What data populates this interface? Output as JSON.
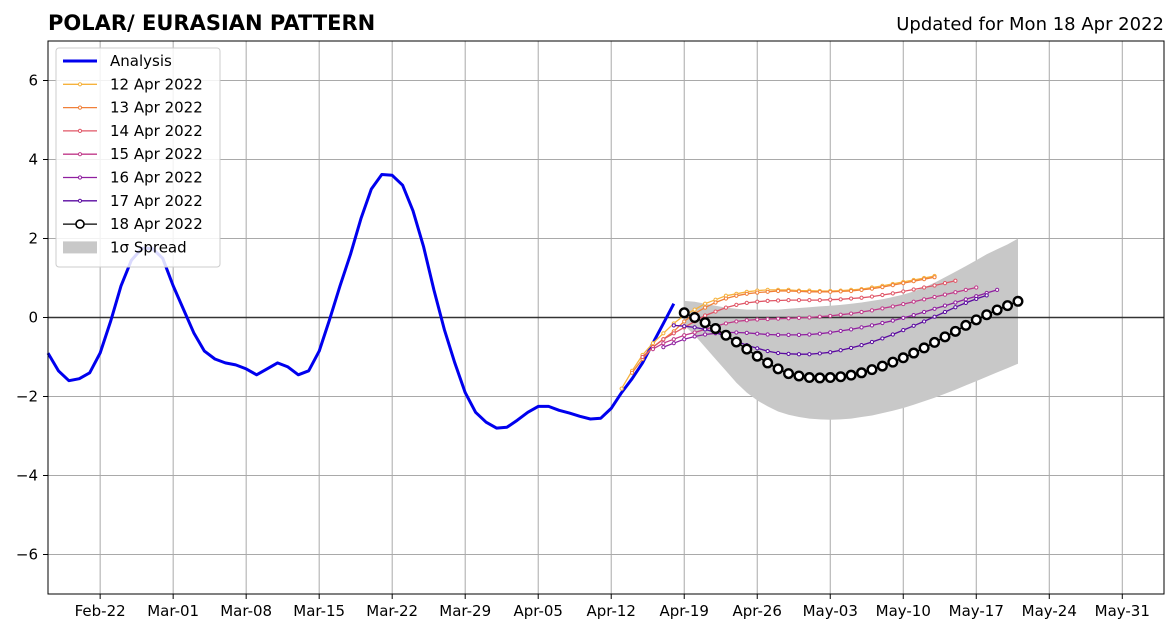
{
  "chart_data": {
    "type": "line",
    "title": "POLAR/ EURASIAN  PATTERN",
    "subtitle": "Updated for Mon 18 Apr 2022",
    "xlabel": "",
    "ylabel": "",
    "ylim": [
      -7,
      7
    ],
    "yticks": [
      -6,
      -4,
      -2,
      0,
      2,
      4,
      6
    ],
    "ytick_labels": [
      "−6",
      "−4",
      "−2",
      "0",
      "2",
      "4",
      "6"
    ],
    "xlim": [
      "2022-02-17",
      "2022-06-04"
    ],
    "xticks": [
      "2022-02-22",
      "2022-03-01",
      "2022-03-08",
      "2022-03-15",
      "2022-03-22",
      "2022-03-29",
      "2022-04-05",
      "2022-04-12",
      "2022-04-19",
      "2022-04-26",
      "2022-05-03",
      "2022-05-10",
      "2022-05-17",
      "2022-05-24",
      "2022-05-31"
    ],
    "xtick_labels": [
      "Feb-22",
      "Mar-01",
      "Mar-08",
      "Mar-15",
      "Mar-22",
      "Mar-29",
      "Apr-05",
      "Apr-12",
      "Apr-19",
      "Apr-26",
      "May-03",
      "May-10",
      "May-17",
      "May-24",
      "May-31"
    ],
    "grid": true,
    "legend_position": "upper-left",
    "analysis": {
      "name": "Analysis",
      "color": "#0000ee",
      "start": "2022-02-17",
      "values": [
        -0.9,
        -1.35,
        -1.6,
        -1.55,
        -1.4,
        -0.9,
        -0.1,
        0.8,
        1.45,
        1.75,
        1.75,
        1.5,
        0.8,
        0.2,
        -0.4,
        -0.85,
        -1.05,
        -1.15,
        -1.2,
        -1.3,
        -1.45,
        -1.3,
        -1.15,
        -1.25,
        -1.45,
        -1.35,
        -0.85,
        -0.05,
        0.8,
        1.6,
        2.5,
        3.25,
        3.62,
        3.6,
        3.35,
        2.7,
        1.8,
        0.7,
        -0.3,
        -1.15,
        -1.9,
        -2.4,
        -2.65,
        -2.8,
        -2.78,
        -2.6,
        -2.4,
        -2.25,
        -2.25,
        -2.35,
        -2.42,
        -2.5,
        -2.57,
        -2.55,
        -2.3,
        -1.9,
        -1.55,
        -1.15,
        -0.65,
        -0.15,
        0.35
      ]
    },
    "forecasts": [
      {
        "name": "12 Apr 2022",
        "color": "#f6b23c",
        "start": "2022-04-13",
        "values": [
          -1.8,
          -1.35,
          -0.95,
          -0.65,
          -0.4,
          -0.15,
          0.05,
          0.2,
          0.35,
          0.45,
          0.55,
          0.6,
          0.65,
          0.68,
          0.7,
          0.7,
          0.7,
          0.68,
          0.68,
          0.67,
          0.67,
          0.68,
          0.7,
          0.72,
          0.76,
          0.8,
          0.85,
          0.9,
          0.95,
          1.0,
          1.05
        ]
      },
      {
        "name": "13 Apr 2022",
        "color": "#f0803a",
        "start": "2022-04-14",
        "values": [
          -1.4,
          -1.05,
          -0.75,
          -0.55,
          -0.35,
          -0.1,
          0.1,
          0.25,
          0.38,
          0.48,
          0.55,
          0.6,
          0.63,
          0.65,
          0.67,
          0.67,
          0.66,
          0.65,
          0.65,
          0.65,
          0.66,
          0.67,
          0.7,
          0.73,
          0.77,
          0.82,
          0.87,
          0.92,
          0.97,
          1.02
        ]
      },
      {
        "name": "14 Apr 2022",
        "color": "#e05667",
        "start": "2022-04-15",
        "values": [
          -1.0,
          -0.75,
          -0.55,
          -0.4,
          -0.25,
          -0.1,
          0.05,
          0.15,
          0.25,
          0.32,
          0.37,
          0.4,
          0.42,
          0.43,
          0.44,
          0.44,
          0.44,
          0.44,
          0.45,
          0.46,
          0.48,
          0.5,
          0.53,
          0.57,
          0.61,
          0.66,
          0.71,
          0.76,
          0.81,
          0.87,
          0.93
        ]
      },
      {
        "name": "15 Apr 2022",
        "color": "#c03a8a",
        "start": "2022-04-16",
        "values": [
          -0.8,
          -0.65,
          -0.55,
          -0.45,
          -0.38,
          -0.3,
          -0.22,
          -0.15,
          -0.1,
          -0.07,
          -0.05,
          -0.04,
          -0.03,
          -0.02,
          -0.01,
          0.0,
          0.02,
          0.04,
          0.07,
          0.1,
          0.14,
          0.18,
          0.23,
          0.28,
          0.34,
          0.4,
          0.46,
          0.52,
          0.58,
          0.64,
          0.7,
          0.76
        ]
      },
      {
        "name": "16 Apr 2022",
        "color": "#8f1fa0",
        "start": "2022-04-17",
        "values": [
          -0.75,
          -0.65,
          -0.55,
          -0.48,
          -0.43,
          -0.4,
          -0.38,
          -0.38,
          -0.39,
          -0.41,
          -0.43,
          -0.44,
          -0.44,
          -0.44,
          -0.43,
          -0.41,
          -0.38,
          -0.34,
          -0.3,
          -0.25,
          -0.2,
          -0.14,
          -0.08,
          -0.01,
          0.06,
          0.14,
          0.22,
          0.3,
          0.38,
          0.46,
          0.54,
          0.62,
          0.7
        ]
      },
      {
        "name": "17 Apr 2022",
        "color": "#5a0aa0",
        "start": "2022-04-18",
        "values": [
          -0.2,
          -0.22,
          -0.25,
          -0.3,
          -0.38,
          -0.48,
          -0.6,
          -0.7,
          -0.78,
          -0.85,
          -0.9,
          -0.92,
          -0.93,
          -0.93,
          -0.91,
          -0.88,
          -0.83,
          -0.77,
          -0.7,
          -0.62,
          -0.53,
          -0.43,
          -0.32,
          -0.21,
          -0.1,
          0.02,
          0.14,
          0.26,
          0.37,
          0.47,
          0.56
        ]
      },
      {
        "name": "18 Apr 2022",
        "color": "#000000",
        "start": "2022-04-19",
        "values": [
          0.12,
          0.0,
          -0.13,
          -0.28,
          -0.45,
          -0.62,
          -0.8,
          -0.98,
          -1.15,
          -1.3,
          -1.42,
          -1.48,
          -1.52,
          -1.53,
          -1.52,
          -1.5,
          -1.46,
          -1.4,
          -1.32,
          -1.23,
          -1.13,
          -1.02,
          -0.9,
          -0.77,
          -0.63,
          -0.49,
          -0.35,
          -0.2,
          -0.06,
          0.07,
          0.19,
          0.3,
          0.41
        ]
      }
    ],
    "spread": {
      "name": "1σ Spread",
      "color": "#c8c8c8",
      "start": "2022-04-19",
      "upper": [
        0.42,
        0.4,
        0.35,
        0.3,
        0.25,
        0.22,
        0.2,
        0.2,
        0.2,
        0.2,
        0.22,
        0.24,
        0.26,
        0.28,
        0.3,
        0.32,
        0.35,
        0.38,
        0.42,
        0.46,
        0.52,
        0.58,
        0.66,
        0.76,
        0.88,
        1.02,
        1.16,
        1.3,
        1.45,
        1.6,
        1.73,
        1.85,
        2.0
      ],
      "lower": [
        -0.2,
        -0.45,
        -0.75,
        -1.05,
        -1.35,
        -1.65,
        -1.9,
        -2.1,
        -2.25,
        -2.38,
        -2.46,
        -2.52,
        -2.56,
        -2.58,
        -2.59,
        -2.58,
        -2.56,
        -2.52,
        -2.48,
        -2.42,
        -2.36,
        -2.29,
        -2.21,
        -2.12,
        -2.03,
        -1.93,
        -1.83,
        -1.72,
        -1.61,
        -1.5,
        -1.39,
        -1.28,
        -1.17
      ]
    }
  }
}
